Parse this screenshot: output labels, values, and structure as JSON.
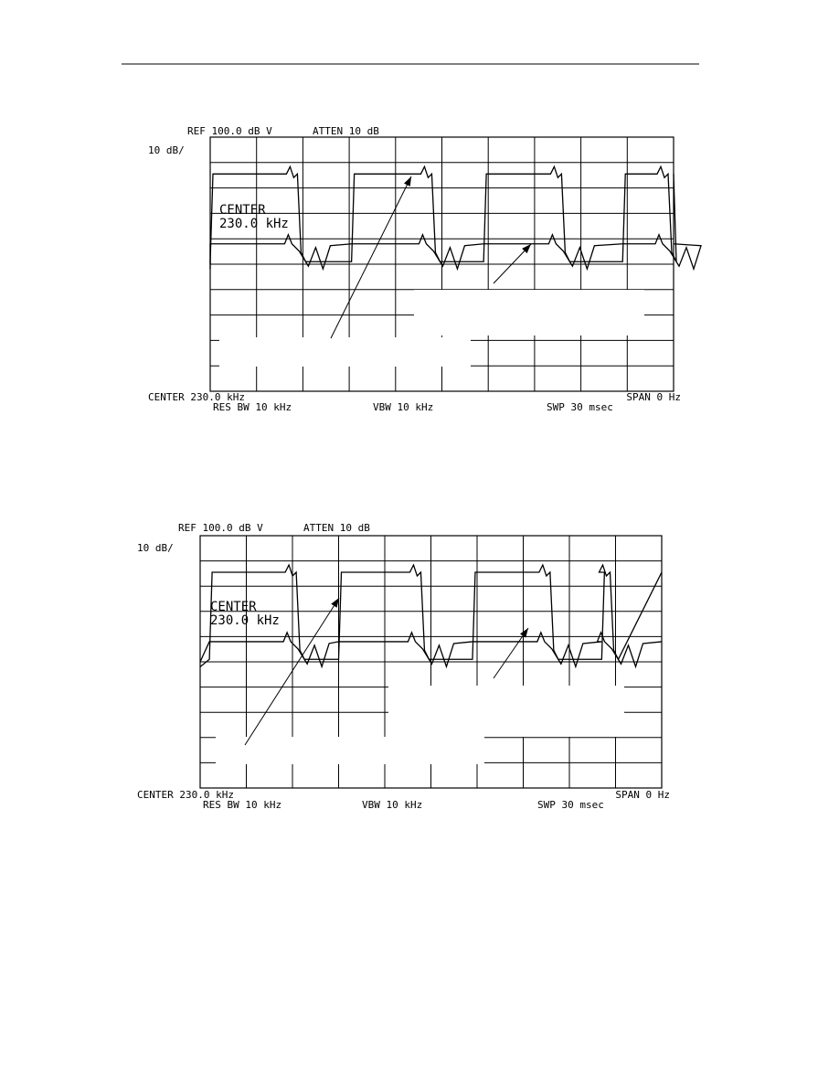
{
  "figures": [
    {
      "header": {
        "ref": "REF 100.0 dB V",
        "atten": "ATTEN 10 dB"
      },
      "scale": "10 dB/",
      "overlay": {
        "center": "CENTER",
        "freq": "230.0 kHz"
      },
      "footer": {
        "center": "CENTER 230.0 kHz",
        "span": "SPAN 0 Hz",
        "res_bw": "RES BW 10 kHz",
        "vbw": "VBW 10 kHz",
        "swp": "SWP 30 msec"
      }
    },
    {
      "header": {
        "ref": "REF 100.0 dB V",
        "atten": "ATTEN 10 dB"
      },
      "scale": "10 dB/",
      "overlay": {
        "center": "CENTER",
        "freq": "230.0 kHz"
      },
      "footer": {
        "center": "CENTER 230.0 kHz",
        "span": "SPAN 0 Hz",
        "res_bw": "RES BW 10 kHz",
        "vbw": "VBW 10 kHz",
        "swp": "SWP 30 msec"
      }
    }
  ]
}
